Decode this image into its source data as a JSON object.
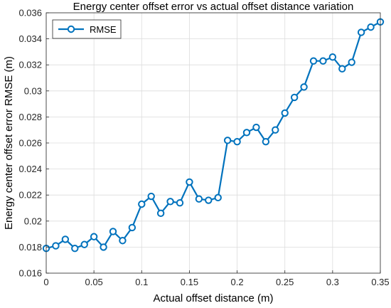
{
  "chart_data": {
    "type": "line",
    "title": "Energy center offset error vs actual offset distance variation",
    "xlabel": "Actual offset distance (m)",
    "ylabel": "Energy center offset error RMSE (m)",
    "xlim": [
      0,
      0.35
    ],
    "ylim": [
      0.016,
      0.036
    ],
    "xticks": [
      "0",
      "0.05",
      "0.1",
      "0.15",
      "0.2",
      "0.25",
      "0.3",
      "0.35"
    ],
    "yticks": [
      "0.016",
      "0.018",
      "0.02",
      "0.022",
      "0.024",
      "0.026",
      "0.028",
      "0.03",
      "0.032",
      "0.034",
      "0.036"
    ],
    "grid": true,
    "legend_position": "top-left",
    "series": [
      {
        "name": "RMSE",
        "color": "#0072BD",
        "marker": "circle",
        "x": [
          0,
          0.01,
          0.02,
          0.03,
          0.04,
          0.05,
          0.06,
          0.07,
          0.08,
          0.09,
          0.1,
          0.11,
          0.12,
          0.13,
          0.14,
          0.15,
          0.16,
          0.17,
          0.18,
          0.19,
          0.2,
          0.21,
          0.22,
          0.23,
          0.24,
          0.25,
          0.26,
          0.27,
          0.28,
          0.29,
          0.3,
          0.31,
          0.32,
          0.33,
          0.34,
          0.35
        ],
        "values": [
          0.0179,
          0.0181,
          0.0186,
          0.0179,
          0.0182,
          0.0188,
          0.018,
          0.0192,
          0.0185,
          0.0195,
          0.0213,
          0.0219,
          0.0206,
          0.0215,
          0.0214,
          0.023,
          0.0217,
          0.0216,
          0.0218,
          0.0262,
          0.0261,
          0.0268,
          0.0272,
          0.0261,
          0.027,
          0.0283,
          0.0295,
          0.0303,
          0.0323,
          0.0323,
          0.0326,
          0.0317,
          0.0322,
          0.0345,
          0.0349,
          0.0353
        ]
      }
    ]
  }
}
